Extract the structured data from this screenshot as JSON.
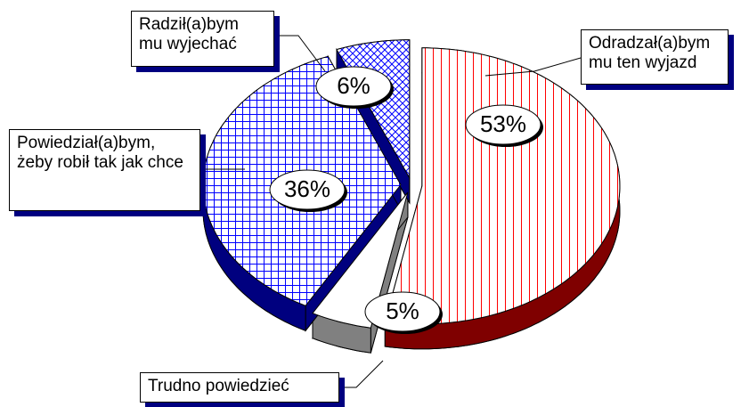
{
  "chart_data": {
    "type": "pie",
    "categories": [
      "Odradzał(a)bym mu ten wyjazd",
      "Trudno powiedzieć",
      "Powiedział(a)bym, żeby robił tak jak chce",
      "Radził(a)bym mu wyjechać"
    ],
    "values": [
      53,
      5,
      36,
      6
    ],
    "value_labels": [
      "53%",
      "5%",
      "36%",
      "6%"
    ],
    "colors": [
      "#ff0000",
      "#ffffff",
      "#0000ff",
      "#0000ff"
    ],
    "patterns": [
      "vertical",
      "solid",
      "grid",
      "crosshatch"
    ]
  }
}
